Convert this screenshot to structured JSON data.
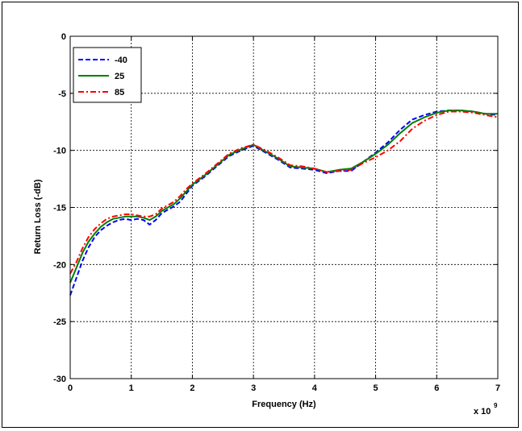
{
  "chart_data": {
    "type": "line",
    "xlabel": "Frequency (Hz)",
    "ylabel": "Return Loss (-dB)",
    "x_multiplier_label": "x 10",
    "x_multiplier_exponent": "9",
    "xlim": [
      0,
      7
    ],
    "ylim": [
      -30,
      0
    ],
    "xticks": [
      "0",
      "1",
      "2",
      "3",
      "4",
      "5",
      "6",
      "7"
    ],
    "yticks": [
      "0",
      "-5",
      "-10",
      "-15",
      "-20",
      "-25",
      "-30"
    ],
    "grid": true,
    "legend_position": "top-left",
    "series": [
      {
        "name": "-40",
        "color": "#0000ff",
        "dash": "dashed",
        "x": [
          0,
          0.1,
          0.2,
          0.3,
          0.4,
          0.5,
          0.6,
          0.7,
          0.8,
          0.9,
          1.0,
          1.1,
          1.2,
          1.3,
          1.4,
          1.5,
          1.6,
          1.7,
          1.8,
          1.9,
          2.0,
          2.2,
          2.4,
          2.6,
          2.8,
          3.0,
          3.2,
          3.4,
          3.6,
          3.8,
          4.0,
          4.2,
          4.4,
          4.6,
          4.8,
          5.0,
          5.2,
          5.4,
          5.6,
          5.8,
          6.0,
          6.2,
          6.4,
          6.6,
          6.8,
          7.0
        ],
        "y": [
          -22.7,
          -21.2,
          -19.7,
          -18.5,
          -17.6,
          -17.0,
          -16.6,
          -16.3,
          -16.1,
          -16.0,
          -16.1,
          -16.0,
          -16.1,
          -16.5,
          -16.1,
          -15.5,
          -15.2,
          -14.9,
          -14.5,
          -13.8,
          -13.1,
          -12.3,
          -11.4,
          -10.5,
          -10.0,
          -9.6,
          -10.2,
          -10.8,
          -11.5,
          -11.6,
          -11.7,
          -12.0,
          -11.8,
          -11.8,
          -11.0,
          -10.2,
          -9.3,
          -8.2,
          -7.3,
          -6.9,
          -6.6,
          -6.5,
          -6.5,
          -6.6,
          -6.8,
          -6.9
        ]
      },
      {
        "name": "25",
        "color": "#008000",
        "dash": "solid",
        "x": [
          0,
          0.1,
          0.2,
          0.3,
          0.4,
          0.5,
          0.6,
          0.7,
          0.8,
          0.9,
          1.0,
          1.1,
          1.2,
          1.3,
          1.4,
          1.5,
          1.6,
          1.7,
          1.8,
          1.9,
          2.0,
          2.2,
          2.4,
          2.6,
          2.8,
          3.0,
          3.2,
          3.4,
          3.6,
          3.8,
          4.0,
          4.2,
          4.4,
          4.6,
          4.8,
          5.0,
          5.2,
          5.4,
          5.6,
          5.8,
          6.0,
          6.2,
          6.4,
          6.6,
          6.8,
          7.0
        ],
        "y": [
          -21.6,
          -20.3,
          -19.0,
          -18.0,
          -17.3,
          -16.7,
          -16.3,
          -16.0,
          -15.9,
          -15.8,
          -15.8,
          -15.8,
          -15.9,
          -16.1,
          -15.8,
          -15.3,
          -15.0,
          -14.7,
          -14.2,
          -13.6,
          -13.0,
          -12.2,
          -11.3,
          -10.4,
          -9.9,
          -9.5,
          -10.1,
          -10.7,
          -11.4,
          -11.5,
          -11.6,
          -11.9,
          -11.7,
          -11.6,
          -11.0,
          -10.3,
          -9.5,
          -8.5,
          -7.6,
          -7.1,
          -6.7,
          -6.5,
          -6.5,
          -6.6,
          -6.8,
          -6.8
        ]
      },
      {
        "name": "85",
        "color": "#ff0000",
        "dash": "dashdot",
        "x": [
          0,
          0.1,
          0.2,
          0.3,
          0.4,
          0.5,
          0.6,
          0.7,
          0.8,
          0.9,
          1.0,
          1.1,
          1.2,
          1.3,
          1.4,
          1.5,
          1.6,
          1.7,
          1.8,
          1.9,
          2.0,
          2.2,
          2.4,
          2.6,
          2.8,
          3.0,
          3.2,
          3.4,
          3.6,
          3.8,
          4.0,
          4.2,
          4.4,
          4.6,
          4.8,
          5.0,
          5.2,
          5.4,
          5.6,
          5.8,
          6.0,
          6.2,
          6.4,
          6.6,
          6.8,
          7.0
        ],
        "y": [
          -20.8,
          -19.8,
          -18.6,
          -17.6,
          -16.9,
          -16.4,
          -16.0,
          -15.8,
          -15.7,
          -15.6,
          -15.6,
          -15.7,
          -15.8,
          -15.8,
          -15.6,
          -15.1,
          -14.8,
          -14.5,
          -14.0,
          -13.4,
          -12.9,
          -12.1,
          -11.2,
          -10.3,
          -9.8,
          -9.5,
          -10.0,
          -10.6,
          -11.3,
          -11.4,
          -11.6,
          -11.9,
          -11.8,
          -11.7,
          -11.1,
          -10.6,
          -10.0,
          -9.2,
          -8.1,
          -7.4,
          -6.9,
          -6.6,
          -6.6,
          -6.7,
          -6.9,
          -7.1
        ]
      }
    ]
  }
}
